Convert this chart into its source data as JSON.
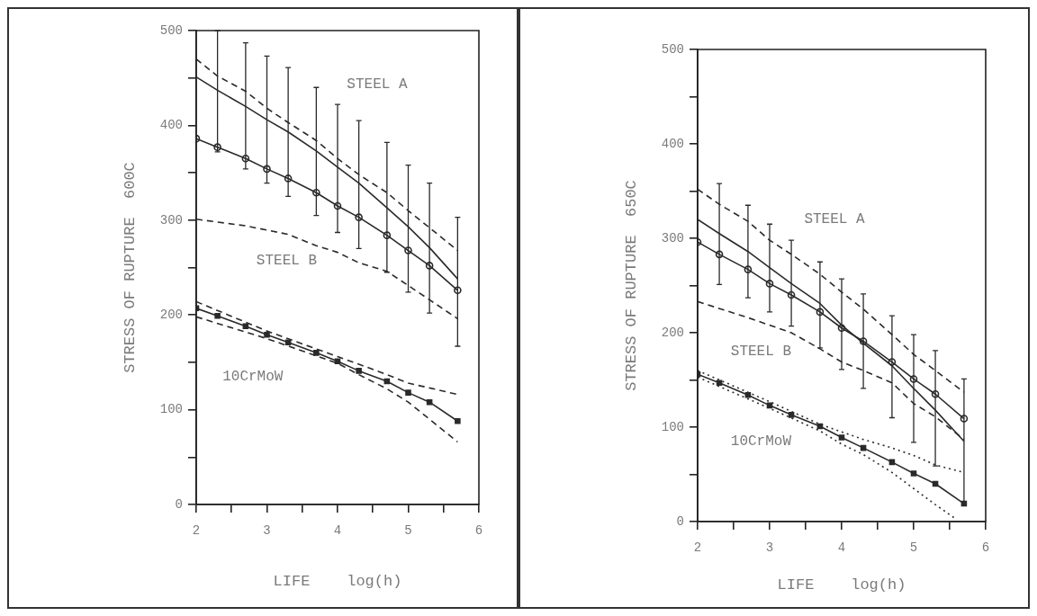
{
  "chart_data": [
    {
      "type": "line",
      "xlabel": "LIFE    log(h)",
      "ylabel": "STRESS OF RUPTURE  600C",
      "xlim": [
        2,
        6
      ],
      "ylim": [
        0,
        500
      ],
      "xticks": [
        2,
        {
          "value": 2.5,
          "label": null
        },
        3,
        {
          "value": 3.5,
          "label": null
        },
        4,
        {
          "value": 4.5,
          "label": null
        },
        5,
        {
          "value": 5.5,
          "label": null
        },
        6
      ],
      "yticks": [
        0,
        {
          "value": 50,
          "label": null
        },
        100,
        {
          "value": 150,
          "label": null
        },
        200,
        {
          "value": 250,
          "label": null
        },
        300,
        {
          "value": 350,
          "label": null
        },
        400,
        {
          "value": 450,
          "label": null
        },
        500
      ],
      "grid": false,
      "legend": false,
      "x": [
        2,
        2.301,
        2.699,
        3,
        3.301,
        3.699,
        4,
        4.301,
        4.699,
        5,
        5.301,
        5.699
      ],
      "series": [
        {
          "color": "#2a2a2a",
          "marker": "circle",
          "line_style": "solid",
          "values": [
            386,
            377,
            365,
            354,
            344,
            329,
            315,
            303,
            284,
            268,
            252,
            226
          ],
          "errors": [
            null,
            [
              372,
              500
            ],
            [
              354,
              487
            ],
            [
              339,
              473
            ],
            [
              325,
              461
            ],
            [
              305,
              440
            ],
            [
              287,
              422
            ],
            [
              270,
              405
            ],
            [
              245,
              382
            ],
            [
              224,
              358
            ],
            [
              202,
              339
            ],
            [
              167,
              303
            ]
          ]
        },
        {
          "color": "#2a2a2a",
          "marker": "none",
          "line_style": "solid",
          "values": [
            451,
            437,
            420,
            406,
            393,
            373,
            356,
            339,
            313,
            293,
            271,
            238
          ]
        },
        {
          "color": "#2a2a2a",
          "marker": "none",
          "line_style": "dashed",
          "values": [
            470,
            452,
            436,
            418,
            403,
            384,
            365,
            348,
            329,
            310,
            292,
            268
          ]
        },
        {
          "color": "#2a2a2a",
          "marker": "none",
          "line_style": "dashed",
          "x": [
            2,
            2.699,
            3.301,
            3.699,
            4,
            4.301,
            4.699,
            5,
            5.301,
            5.699
          ],
          "values": [
            301,
            294,
            285,
            273,
            266,
            255,
            246,
            231,
            216,
            196
          ]
        },
        {
          "color": "#2a2a2a",
          "marker": "square",
          "line_style": "solid",
          "values": [
            207,
            199,
            188,
            179,
            171,
            160,
            151,
            141,
            130,
            118,
            108,
            88
          ]
        },
        {
          "color": "#2a2a2a",
          "marker": "none",
          "line_style": "dashed",
          "x": [
            2,
            3,
            4,
            4.301,
            4.699,
            5,
            5.301,
            5.699
          ],
          "values": [
            214,
            183,
            156,
            148,
            137,
            128,
            123,
            116
          ]
        },
        {
          "color": "#2a2a2a",
          "marker": "none",
          "line_style": "dashed",
          "x": [
            2,
            3,
            4,
            4.301,
            4.699,
            5,
            5.301,
            5.699
          ],
          "values": [
            198,
            175,
            149,
            137,
            122,
            108,
            90,
            66
          ]
        }
      ],
      "annotations": [
        "STEEL A",
        "STEEL B",
        "10CrMoW"
      ]
    },
    {
      "type": "line",
      "xlabel": "LIFE    log(h)",
      "ylabel": "STRESS OF RUPTURE  650C",
      "xlim": [
        2,
        6
      ],
      "ylim": [
        0,
        500
      ],
      "xticks": [
        2,
        {
          "value": 2.5,
          "label": null
        },
        3,
        {
          "value": 3.5,
          "label": null
        },
        4,
        {
          "value": 4.5,
          "label": null
        },
        5,
        {
          "value": 5.5,
          "label": null
        },
        6
      ],
      "yticks": [
        0,
        {
          "value": 50,
          "label": null
        },
        100,
        {
          "value": 150,
          "label": null
        },
        200,
        {
          "value": 250,
          "label": null
        },
        300,
        {
          "value": 350,
          "label": null
        },
        400,
        {
          "value": 450,
          "label": null
        },
        500
      ],
      "grid": false,
      "legend": false,
      "x": [
        2,
        2.301,
        2.699,
        3,
        3.301,
        3.699,
        4,
        4.301,
        4.699,
        5,
        5.301,
        5.699
      ],
      "series": [
        {
          "color": "#2a2a2a",
          "marker": "circle",
          "line_style": "solid",
          "values": [
            296,
            283,
            267,
            252,
            240,
            222,
            205,
            191,
            169,
            151,
            135,
            109
          ],
          "errors": [
            null,
            [
              251,
              358
            ],
            [
              237,
              335
            ],
            [
              222,
              315
            ],
            [
              207,
              298
            ],
            [
              184,
              275
            ],
            [
              161,
              257
            ],
            [
              141,
              241
            ],
            [
              110,
              218
            ],
            [
              84,
              198
            ],
            [
              59,
              181
            ],
            [
              21,
              151
            ]
          ]
        },
        {
          "color": "#2a2a2a",
          "marker": "none",
          "line_style": "solid",
          "values": [
            320,
            305,
            286,
            269,
            252,
            231,
            208,
            189,
            165,
            141,
            118,
            85
          ]
        },
        {
          "color": "#2a2a2a",
          "marker": "none",
          "line_style": "dashed",
          "values": [
            352,
            336,
            318,
            298,
            283,
            262,
            243,
            225,
            198,
            177,
            160,
            137
          ]
        },
        {
          "color": "#2a2a2a",
          "marker": "none",
          "line_style": "dashed",
          "x": [
            2,
            2.699,
            3.301,
            3.699,
            4,
            4.301,
            4.699,
            5,
            5.301,
            5.699
          ],
          "values": [
            233,
            216,
            200,
            183,
            169,
            160,
            147,
            125,
            111,
            87
          ]
        },
        {
          "color": "#2a2a2a",
          "marker": "square",
          "line_style": "solid",
          "values": [
            156,
            147,
            134,
            123,
            113,
            101,
            89,
            78,
            63,
            51,
            40,
            19
          ]
        },
        {
          "color": "#2a2a2a",
          "marker": "none",
          "line_style": "dotted",
          "x": [
            2,
            3,
            3.699,
            4,
            4.301,
            4.699,
            5,
            5.301,
            5.699
          ],
          "values": [
            160,
            127,
            103,
            95,
            87,
            78,
            70,
            60,
            52
          ]
        },
        {
          "color": "#2a2a2a",
          "marker": "none",
          "line_style": "dotted",
          "x": [
            2,
            3,
            3.699,
            4,
            4.301,
            4.699,
            5,
            5.301,
            5.6
          ],
          "values": [
            153,
            120,
            96,
            82,
            71,
            52,
            35,
            18,
            2
          ]
        }
      ],
      "annotations": [
        "STEEL A",
        "STEEL B",
        "10CrMoW"
      ]
    }
  ]
}
